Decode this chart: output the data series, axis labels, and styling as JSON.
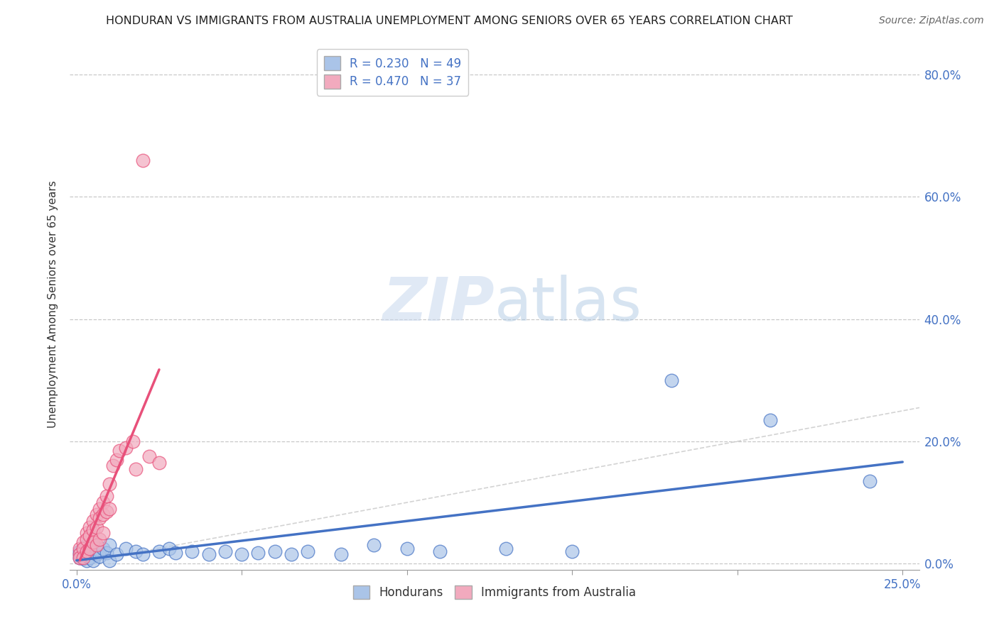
{
  "title": "HONDURAN VS IMMIGRANTS FROM AUSTRALIA UNEMPLOYMENT AMONG SENIORS OVER 65 YEARS CORRELATION CHART",
  "source": "Source: ZipAtlas.com",
  "ylabel": "Unemployment Among Seniors over 65 years",
  "xlim": [
    -0.002,
    0.255
  ],
  "ylim": [
    -0.01,
    0.86
  ],
  "xticks": [
    0.0,
    0.05,
    0.1,
    0.15,
    0.2,
    0.25
  ],
  "yticks": [
    0.0,
    0.2,
    0.4,
    0.6,
    0.8
  ],
  "legend_labels": [
    "Hondurans",
    "Immigrants from Australia"
  ],
  "R_honduran": 0.23,
  "N_honduran": 49,
  "R_australia": 0.47,
  "N_australia": 37,
  "color_honduran": "#aac4e8",
  "color_australia": "#f2aabe",
  "line_color_honduran": "#4472c4",
  "line_color_australia": "#e8507a",
  "watermark_zip": "ZIP",
  "watermark_atlas": "atlas",
  "background_color": "#ffffff",
  "grid_color": "#c8c8c8",
  "honduran_x": [
    0.001,
    0.001,
    0.001,
    0.002,
    0.002,
    0.002,
    0.002,
    0.003,
    0.003,
    0.003,
    0.003,
    0.004,
    0.004,
    0.004,
    0.005,
    0.005,
    0.005,
    0.006,
    0.006,
    0.007,
    0.007,
    0.008,
    0.009,
    0.01,
    0.01,
    0.012,
    0.015,
    0.018,
    0.02,
    0.025,
    0.028,
    0.03,
    0.035,
    0.04,
    0.045,
    0.05,
    0.055,
    0.06,
    0.065,
    0.07,
    0.08,
    0.09,
    0.1,
    0.11,
    0.13,
    0.15,
    0.18,
    0.21,
    0.24
  ],
  "honduran_y": [
    0.02,
    0.015,
    0.01,
    0.025,
    0.018,
    0.012,
    0.008,
    0.022,
    0.03,
    0.005,
    0.015,
    0.018,
    0.025,
    0.01,
    0.02,
    0.03,
    0.005,
    0.015,
    0.025,
    0.02,
    0.012,
    0.025,
    0.018,
    0.03,
    0.005,
    0.015,
    0.025,
    0.02,
    0.015,
    0.02,
    0.025,
    0.018,
    0.02,
    0.015,
    0.02,
    0.015,
    0.018,
    0.02,
    0.015,
    0.02,
    0.015,
    0.03,
    0.025,
    0.02,
    0.025,
    0.02,
    0.3,
    0.235,
    0.135
  ],
  "australia_x": [
    0.001,
    0.001,
    0.001,
    0.002,
    0.002,
    0.002,
    0.003,
    0.003,
    0.003,
    0.004,
    0.004,
    0.004,
    0.005,
    0.005,
    0.005,
    0.006,
    0.006,
    0.006,
    0.007,
    0.007,
    0.007,
    0.008,
    0.008,
    0.008,
    0.009,
    0.009,
    0.01,
    0.01,
    0.011,
    0.012,
    0.013,
    0.015,
    0.017,
    0.018,
    0.02,
    0.022,
    0.025
  ],
  "australia_y": [
    0.025,
    0.015,
    0.01,
    0.035,
    0.025,
    0.01,
    0.05,
    0.04,
    0.02,
    0.06,
    0.045,
    0.025,
    0.07,
    0.055,
    0.035,
    0.08,
    0.06,
    0.03,
    0.09,
    0.075,
    0.04,
    0.1,
    0.08,
    0.05,
    0.11,
    0.085,
    0.13,
    0.09,
    0.16,
    0.17,
    0.185,
    0.19,
    0.2,
    0.155,
    0.66,
    0.175,
    0.165
  ]
}
